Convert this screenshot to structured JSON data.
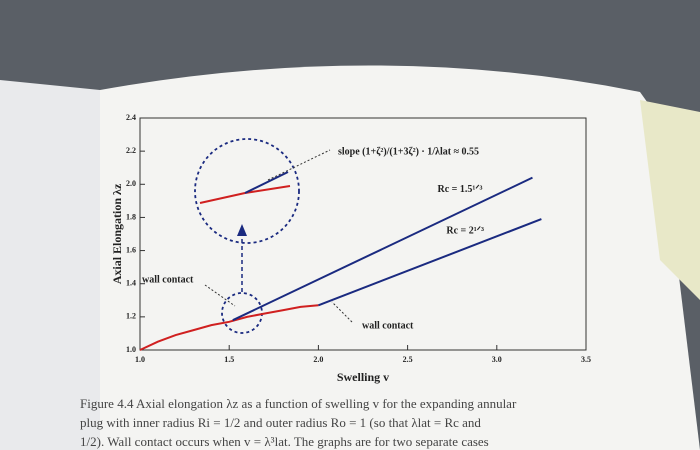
{
  "chart_data": {
    "type": "line",
    "xlabel": "Swelling v",
    "ylabel": "Axial Elongation λz",
    "xlim": [
      1,
      3.5
    ],
    "ylim": [
      1,
      2.4
    ],
    "xticks": [
      {
        "value": 1,
        "label": "1.0"
      },
      1.5,
      {
        "value": 2,
        "label": "2.0"
      },
      2.5,
      {
        "value": 3,
        "label": "3.0"
      },
      3.5
    ],
    "yticks": [
      {
        "value": 1,
        "label": "1.0"
      },
      1.2,
      1.4,
      1.6,
      1.8,
      {
        "value": 2,
        "label": "2.0"
      },
      2.2,
      2.4
    ],
    "series": [
      {
        "color": "#d02020",
        "x": [
          1,
          1.1,
          1.2,
          1.3,
          1.4,
          1.5,
          1.6,
          1.7,
          1.8,
          1.9,
          2
        ],
        "values": [
          1,
          1.05,
          1.09,
          1.12,
          1.15,
          1.17,
          1.2,
          1.22,
          1.24,
          1.26,
          1.27
        ]
      },
      {
        "name": "Rc = 1.5¹ᐟ³",
        "color": "#1a2a80",
        "x": [
          1.52,
          3.2
        ],
        "values": [
          1.18,
          2.04
        ]
      },
      {
        "name": "Rc = 2¹ᐟ³",
        "color": "#1a2a80",
        "x": [
          2,
          3.25
        ],
        "values": [
          1.27,
          1.79
        ]
      }
    ],
    "annotations": [
      "slope (1+ζ²)/(1+3ζ²) · 1/λlat ≈ 0.55",
      "wall contact",
      "wall contact"
    ],
    "caption": [
      "Figure 4.4 Axial elongation λz as a function of swelling v for the expanding annular",
      "plug with inner radius Ri = 1/2 and outer radius Ro = 1 (so that λlat = Rc and",
      "1/2). Wall contact occurs when v = λ³lat. The graphs are for two separate cases"
    ]
  }
}
